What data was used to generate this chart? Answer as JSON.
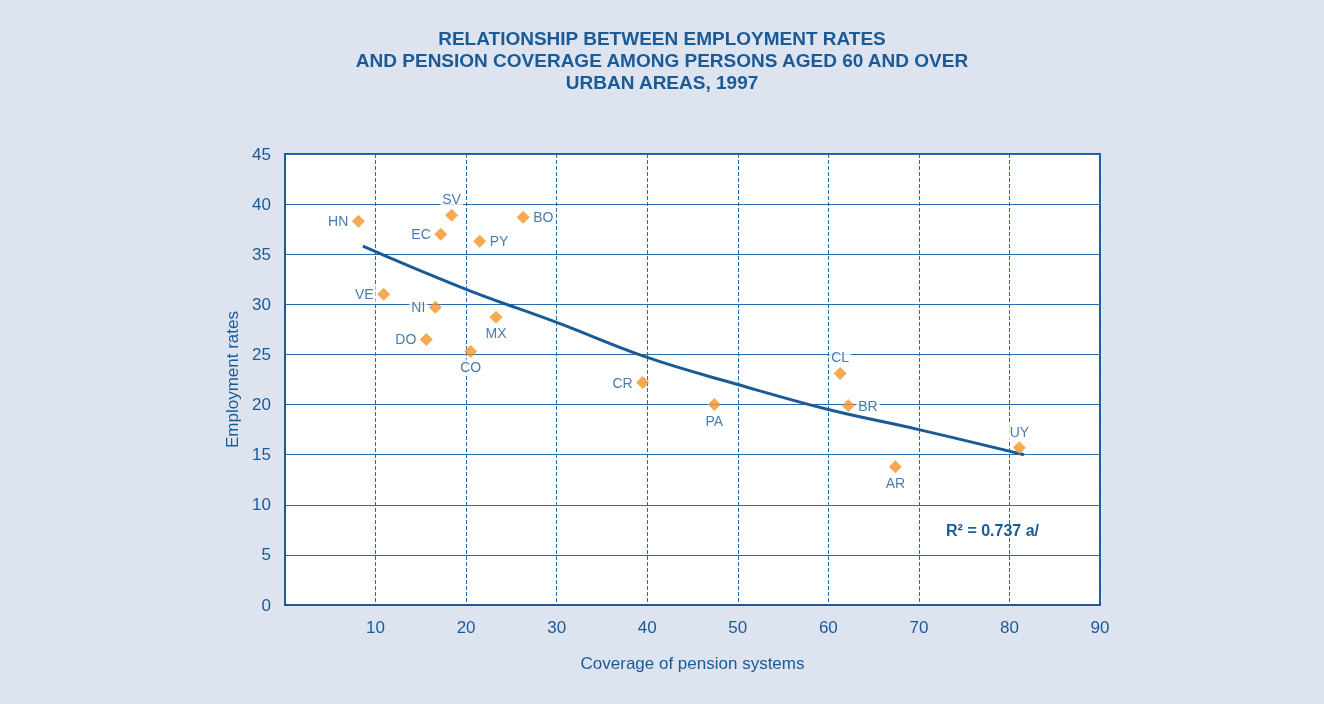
{
  "chart_data": {
    "type": "scatter",
    "title": "RELATIONSHIP BETWEEN EMPLOYMENT RATES\nAND PENSION COVERAGE AMONG PERSONS AGED 60 AND OVER\nURBAN AREAS, 1997",
    "xlabel": "Coverage of pension systems",
    "ylabel": "Employment rates",
    "xlim": [
      0,
      90
    ],
    "xticks": [
      10,
      20,
      30,
      40,
      50,
      60,
      70,
      80,
      90
    ],
    "ylim": [
      0,
      45
    ],
    "yticks": [
      0,
      5,
      10,
      15,
      20,
      25,
      30,
      35,
      40,
      45
    ],
    "grid": true,
    "marker": "diamond",
    "series": [
      {
        "color": "#f39425",
        "x": [
          8.1,
          18.4,
          17.2,
          21.5,
          26.3,
          10.9,
          16.6,
          15.6,
          23.3,
          20.5,
          39.5,
          47.4,
          61.3,
          62.2,
          67.4,
          81.1
        ],
        "values": [
          38.3,
          38.9,
          37.0,
          36.3,
          38.7,
          31.0,
          29.7,
          26.5,
          28.7,
          25.3,
          22.2,
          20.0,
          23.1,
          19.9,
          13.8,
          15.7
        ]
      },
      {
        "type": "line",
        "color": "#1a5a97",
        "marker": "none",
        "x": [
          8.6,
          20,
          30,
          40,
          50,
          60,
          70,
          81.6
        ],
        "values": [
          35.8,
          31.5,
          28.2,
          24.7,
          22.0,
          19.5,
          17.5,
          15.0
        ]
      }
    ],
    "annotations": [
      {
        "text": "HN",
        "x": 8.1,
        "y": 38.3
      },
      {
        "text": "SV",
        "x": 18.4,
        "y": 38.9
      },
      {
        "text": "EC",
        "x": 17.2,
        "y": 37.0
      },
      {
        "text": "PY",
        "x": 21.5,
        "y": 36.3
      },
      {
        "text": "BO",
        "x": 26.3,
        "y": 38.7
      },
      {
        "text": "VE",
        "x": 10.9,
        "y": 31.0
      },
      {
        "text": "NI",
        "x": 16.6,
        "y": 29.7
      },
      {
        "text": "DO",
        "x": 15.6,
        "y": 26.5
      },
      {
        "text": "MX",
        "x": 23.3,
        "y": 28.7
      },
      {
        "text": "CO",
        "x": 20.5,
        "y": 25.3
      },
      {
        "text": "CR",
        "x": 39.5,
        "y": 22.2
      },
      {
        "text": "PA",
        "x": 47.4,
        "y": 20.0
      },
      {
        "text": "CL",
        "x": 61.3,
        "y": 23.1
      },
      {
        "text": "BR",
        "x": 62.2,
        "y": 19.9
      },
      {
        "text": "AR",
        "x": 67.4,
        "y": 13.8
      },
      {
        "text": "UY",
        "x": 81.1,
        "y": 15.7
      },
      "R² = 0.737 a/"
    ]
  }
}
